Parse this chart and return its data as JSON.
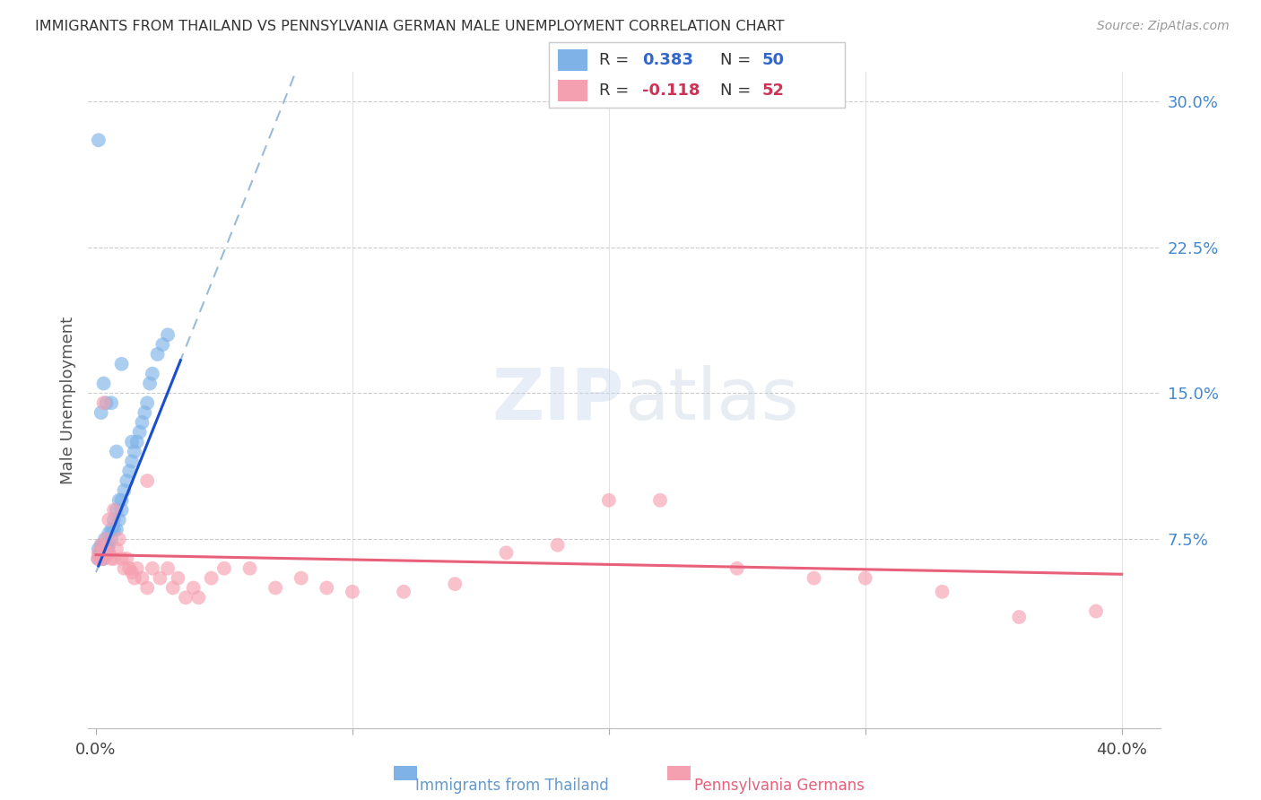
{
  "title": "IMMIGRANTS FROM THAILAND VS PENNSYLVANIA GERMAN MALE UNEMPLOYMENT CORRELATION CHART",
  "source": "Source: ZipAtlas.com",
  "ylabel": "Male Unemployment",
  "y_ticks": [
    0.0,
    0.075,
    0.15,
    0.225,
    0.3
  ],
  "y_tick_labels": [
    "",
    "7.5%",
    "15.0%",
    "22.5%",
    "30.0%"
  ],
  "x_ticks": [
    0.0,
    0.1,
    0.2,
    0.3,
    0.4
  ],
  "x_tick_labels": [
    "0.0%",
    "",
    "",
    "",
    "40.0%"
  ],
  "legend_r1_label": "R = ",
  "legend_r1_val": "0.383",
  "legend_n1_label": "N = ",
  "legend_n1_val": "50",
  "legend_r2_label": "R = ",
  "legend_r2_val": "-0.118",
  "legend_n2_label": "N = ",
  "legend_n2_val": "52",
  "watermark": "ZIPatlas",
  "background_color": "#ffffff",
  "blue_color": "#7fb3e8",
  "pink_color": "#f5a0b0",
  "blue_line_color": "#1a4fcc",
  "blue_dash_color": "#99bbdd",
  "pink_line_color": "#e8607a",
  "xlim": [
    -0.003,
    0.415
  ],
  "ylim": [
    -0.022,
    0.315
  ],
  "thailand_x": [
    0.0008,
    0.001,
    0.0015,
    0.002,
    0.002,
    0.0025,
    0.003,
    0.003,
    0.003,
    0.0035,
    0.004,
    0.004,
    0.005,
    0.005,
    0.005,
    0.006,
    0.006,
    0.007,
    0.007,
    0.008,
    0.008,
    0.009,
    0.009,
    0.01,
    0.01,
    0.011,
    0.012,
    0.013,
    0.014,
    0.015,
    0.016,
    0.017,
    0.018,
    0.019,
    0.02,
    0.021,
    0.022,
    0.024,
    0.026,
    0.028,
    0.001,
    0.002,
    0.003,
    0.004,
    0.0025,
    0.0045,
    0.006,
    0.008,
    0.01,
    0.014
  ],
  "thailand_y": [
    0.065,
    0.07,
    0.068,
    0.072,
    0.068,
    0.07,
    0.065,
    0.072,
    0.068,
    0.075,
    0.072,
    0.07,
    0.068,
    0.072,
    0.078,
    0.075,
    0.08,
    0.08,
    0.085,
    0.08,
    0.09,
    0.085,
    0.095,
    0.09,
    0.095,
    0.1,
    0.105,
    0.11,
    0.115,
    0.12,
    0.125,
    0.13,
    0.135,
    0.14,
    0.145,
    0.155,
    0.16,
    0.17,
    0.175,
    0.18,
    0.28,
    0.14,
    0.155,
    0.145,
    0.065,
    0.07,
    0.145,
    0.12,
    0.165,
    0.125
  ],
  "german_x": [
    0.0008,
    0.001,
    0.0015,
    0.002,
    0.003,
    0.003,
    0.004,
    0.005,
    0.005,
    0.006,
    0.007,
    0.007,
    0.008,
    0.009,
    0.01,
    0.011,
    0.012,
    0.013,
    0.014,
    0.015,
    0.016,
    0.018,
    0.02,
    0.022,
    0.025,
    0.028,
    0.03,
    0.032,
    0.035,
    0.038,
    0.04,
    0.045,
    0.05,
    0.06,
    0.07,
    0.08,
    0.09,
    0.1,
    0.12,
    0.14,
    0.16,
    0.18,
    0.2,
    0.22,
    0.25,
    0.28,
    0.3,
    0.33,
    0.36,
    0.39,
    0.003,
    0.02
  ],
  "german_y": [
    0.065,
    0.068,
    0.065,
    0.072,
    0.065,
    0.07,
    0.075,
    0.068,
    0.085,
    0.065,
    0.065,
    0.09,
    0.07,
    0.075,
    0.065,
    0.06,
    0.065,
    0.06,
    0.058,
    0.055,
    0.06,
    0.055,
    0.05,
    0.06,
    0.055,
    0.06,
    0.05,
    0.055,
    0.045,
    0.05,
    0.045,
    0.055,
    0.06,
    0.06,
    0.05,
    0.055,
    0.05,
    0.048,
    0.048,
    0.052,
    0.068,
    0.072,
    0.095,
    0.095,
    0.06,
    0.055,
    0.055,
    0.048,
    0.035,
    0.038,
    0.145,
    0.105
  ],
  "blue_line_x": [
    0.001,
    0.033
  ],
  "blue_line_y_intercept": 0.058,
  "blue_line_slope": 3.3,
  "pink_line_x": [
    0.0,
    0.4
  ],
  "pink_line_y_intercept": 0.067,
  "pink_line_slope": -0.025
}
